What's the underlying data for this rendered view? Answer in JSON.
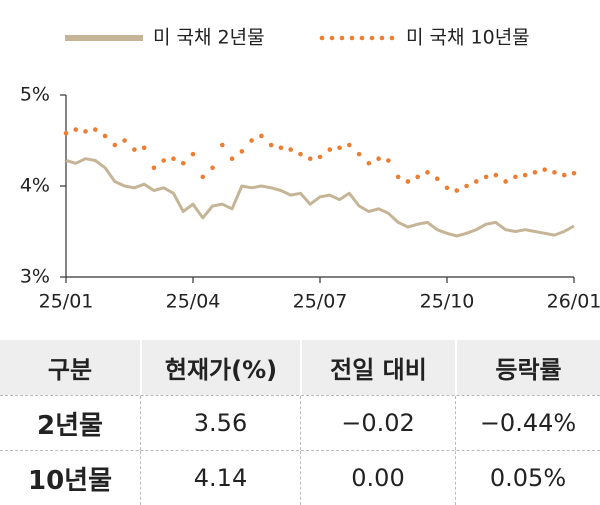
{
  "chart_data": {
    "type": "line",
    "categories": [
      "25/01",
      null,
      null,
      null,
      null,
      null,
      null,
      null,
      null,
      null,
      null,
      null,
      null,
      "25/04",
      null,
      null,
      null,
      null,
      null,
      null,
      null,
      null,
      null,
      null,
      null,
      null,
      "25/07",
      null,
      null,
      null,
      null,
      null,
      null,
      null,
      null,
      null,
      null,
      null,
      null,
      "25/10",
      null,
      null,
      null,
      null,
      null,
      null,
      null,
      null,
      null,
      null,
      null,
      null,
      "26/01"
    ],
    "series": [
      {
        "name": "미 국채 2년물",
        "color": "#c5b596",
        "style": "line",
        "values": [
          4.28,
          4.25,
          4.3,
          4.28,
          4.2,
          4.05,
          4.0,
          3.98,
          4.02,
          3.95,
          3.98,
          3.92,
          3.72,
          3.8,
          3.65,
          3.78,
          3.8,
          3.75,
          4.0,
          3.98,
          4.0,
          3.98,
          3.95,
          3.9,
          3.92,
          3.8,
          3.88,
          3.9,
          3.85,
          3.92,
          3.78,
          3.72,
          3.75,
          3.7,
          3.6,
          3.55,
          3.58,
          3.6,
          3.52,
          3.48,
          3.45,
          3.48,
          3.52,
          3.58,
          3.6,
          3.52,
          3.5,
          3.52,
          3.5,
          3.48,
          3.46,
          3.5,
          3.56
        ]
      },
      {
        "name": "미 국채 10년물",
        "color": "#ed7d31",
        "style": "dotted",
        "values": [
          4.58,
          4.62,
          4.6,
          4.62,
          4.55,
          4.45,
          4.5,
          4.4,
          4.42,
          4.2,
          4.28,
          4.3,
          4.25,
          4.35,
          4.1,
          4.2,
          4.45,
          4.3,
          4.38,
          4.5,
          4.55,
          4.45,
          4.42,
          4.4,
          4.35,
          4.3,
          4.32,
          4.4,
          4.42,
          4.45,
          4.35,
          4.25,
          4.3,
          4.28,
          4.1,
          4.05,
          4.1,
          4.15,
          4.08,
          3.98,
          3.95,
          4.0,
          4.05,
          4.1,
          4.12,
          4.05,
          4.1,
          4.12,
          4.15,
          4.18,
          4.15,
          4.12,
          4.14
        ]
      }
    ],
    "ylim": [
      3,
      5
    ],
    "yticks": [
      {
        "value": 3,
        "label": "3%"
      },
      {
        "value": 4,
        "label": "4%"
      },
      {
        "value": 5,
        "label": "5%"
      }
    ],
    "legend": "top"
  },
  "table": {
    "header": [
      "구분",
      "현재가(%)",
      "전일 대비",
      "등락률"
    ],
    "rows": [
      [
        "2년물",
        "3.56",
        "−0.02",
        "−0.44%"
      ],
      [
        "10년물",
        "4.14",
        "0.00",
        "0.05%"
      ]
    ]
  }
}
